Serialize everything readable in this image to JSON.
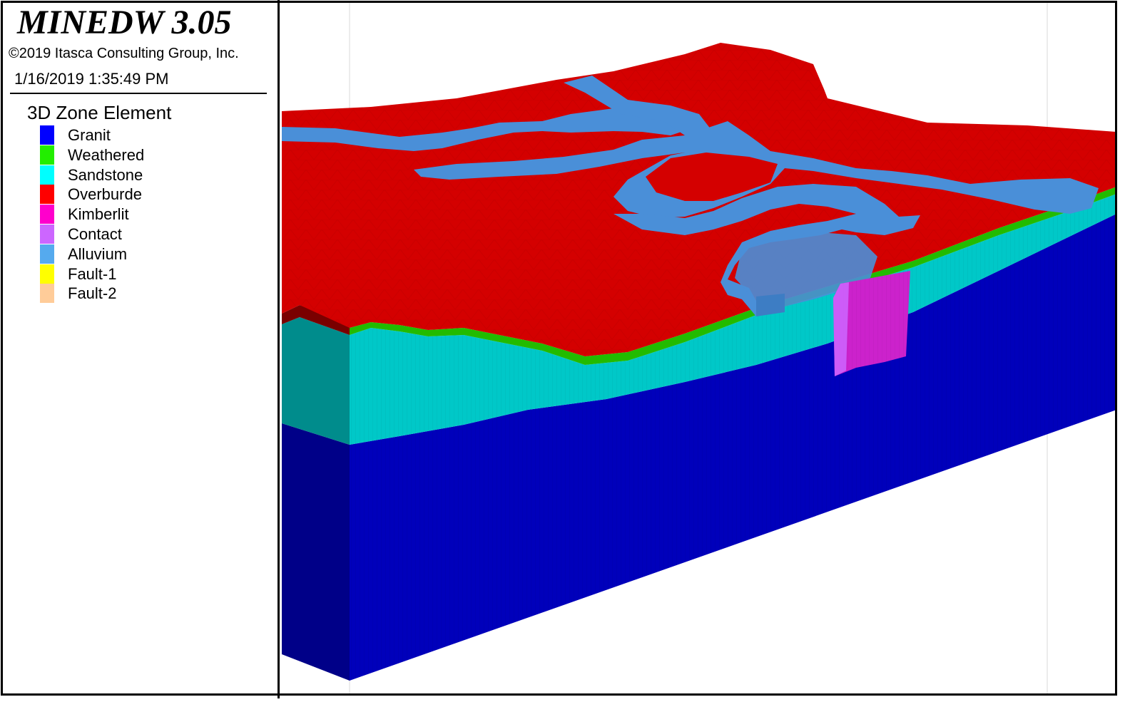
{
  "header": {
    "app_title": "MINEDW 3.05",
    "copyright": "©2019 Itasca Consulting Group, Inc.",
    "timestamp": "1/16/2019 1:35:49 PM"
  },
  "legend": {
    "title": "3D Zone Element",
    "items": [
      {
        "label": "Granit",
        "color": "#0000ff"
      },
      {
        "label": "Weathered",
        "color": "#22ee00"
      },
      {
        "label": "Sandstone",
        "color": "#00ffff"
      },
      {
        "label": "Overburde",
        "color": "#ff0000"
      },
      {
        "label": "Kimberlit",
        "color": "#ff00cc"
      },
      {
        "label": "Contact",
        "color": "#cc66ff"
      },
      {
        "label": "Alluvium",
        "color": "#55aaee"
      },
      {
        "label": "Fault-1",
        "color": "#ffff00"
      },
      {
        "label": "Fault-2",
        "color": "#ffcc99"
      }
    ]
  },
  "model_colors": {
    "granit_front": "#0000bb",
    "granit_side": "#000088",
    "sandstone_front": "#00c8c8",
    "sandstone_side": "#008c8c",
    "weathered_band": "#22bb00",
    "overburden_top": "#d40000",
    "alluvium_top": "#4a8fd8",
    "kimberlit_pipe": "#cc22cc"
  }
}
